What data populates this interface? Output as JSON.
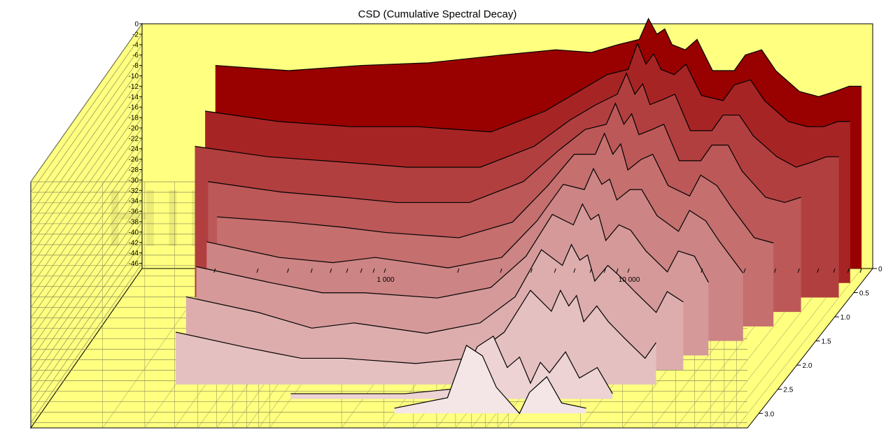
{
  "watermark": "HIFICompass.com",
  "colors": {
    "wall": "#ffff80",
    "gridline": "#8c8c5a",
    "front_slice": "#f2e2e2",
    "back_slice": "#990000"
  },
  "chart_data": {
    "type": "waterfall",
    "title": "CSD (Cumulative Spectral Decay)",
    "grid": true,
    "x_scale": "log",
    "x_ticks": [
      {
        "value": 1000,
        "label": "1 000"
      },
      {
        "value": 10000,
        "label": "10 000"
      }
    ],
    "y_range": [
      -47,
      0
    ],
    "y_ticks": [
      "0",
      "-2",
      "-4",
      "-6",
      "-8",
      "-10",
      "-12",
      "-14",
      "-16",
      "-18",
      "-20",
      "-22",
      "-24",
      "-26",
      "-28",
      "-30",
      "-32",
      "-34",
      "-36",
      "-38",
      "-40",
      "-42",
      "-44",
      "-46"
    ],
    "z_range": [
      0,
      3.3
    ],
    "z_ticks": [
      "0",
      "0.5",
      "1.0",
      "1.5",
      "2.0",
      "2.5",
      "3.0"
    ],
    "slices": [
      {
        "t": 0.0,
        "f_start": 200,
        "points": [
          [
            200,
            -8
          ],
          [
            400,
            -9
          ],
          [
            800,
            -8
          ],
          [
            1500,
            -7.5
          ],
          [
            3000,
            -6
          ],
          [
            5000,
            -5
          ],
          [
            7000,
            -5.5
          ],
          [
            9000,
            -4
          ],
          [
            11000,
            -3
          ],
          [
            12000,
            1
          ],
          [
            13000,
            -2
          ],
          [
            14000,
            -1
          ],
          [
            15000,
            -4
          ],
          [
            17000,
            -5
          ],
          [
            19000,
            -3
          ],
          [
            22000,
            -9
          ],
          [
            27000,
            -9
          ],
          [
            30000,
            -6
          ],
          [
            35000,
            -5
          ],
          [
            40000,
            -9
          ],
          [
            50000,
            -13
          ],
          [
            60000,
            -14
          ],
          [
            70000,
            -13
          ],
          [
            80000,
            -12
          ],
          [
            90000,
            -12
          ]
        ]
      },
      {
        "t": 0.3,
        "f_start": 200,
        "points": [
          [
            200,
            -14
          ],
          [
            400,
            -16
          ],
          [
            800,
            -17
          ],
          [
            1500,
            -17
          ],
          [
            3000,
            -18
          ],
          [
            5000,
            -14
          ],
          [
            7000,
            -10
          ],
          [
            9000,
            -7
          ],
          [
            11000,
            -6
          ],
          [
            12000,
            -1
          ],
          [
            13000,
            -5
          ],
          [
            14000,
            -3
          ],
          [
            15000,
            -6
          ],
          [
            17000,
            -7
          ],
          [
            19000,
            -5
          ],
          [
            22000,
            -11
          ],
          [
            27000,
            -12
          ],
          [
            30000,
            -9
          ],
          [
            35000,
            -8
          ],
          [
            40000,
            -12
          ],
          [
            50000,
            -16
          ],
          [
            60000,
            -17
          ],
          [
            70000,
            -17
          ],
          [
            80000,
            -16
          ],
          [
            90000,
            -16
          ]
        ]
      },
      {
        "t": 0.6,
        "f_start": 200,
        "points": [
          [
            200,
            -18
          ],
          [
            400,
            -20
          ],
          [
            800,
            -21
          ],
          [
            1500,
            -22
          ],
          [
            3000,
            -22
          ],
          [
            5000,
            -18
          ],
          [
            7000,
            -13
          ],
          [
            9000,
            -10
          ],
          [
            11000,
            -8
          ],
          [
            12000,
            -4
          ],
          [
            13000,
            -8
          ],
          [
            14000,
            -6
          ],
          [
            15000,
            -10
          ],
          [
            17000,
            -9
          ],
          [
            19000,
            -8
          ],
          [
            22000,
            -15
          ],
          [
            27000,
            -15
          ],
          [
            30000,
            -12
          ],
          [
            35000,
            -12
          ],
          [
            40000,
            -16
          ],
          [
            50000,
            -20
          ],
          [
            60000,
            -22
          ],
          [
            70000,
            -21
          ],
          [
            80000,
            -20
          ],
          [
            90000,
            -20
          ]
        ]
      },
      {
        "t": 0.9,
        "f_start": 250,
        "points": [
          [
            250,
            -22
          ],
          [
            500,
            -24
          ],
          [
            900,
            -25
          ],
          [
            1500,
            -26
          ],
          [
            3000,
            -26
          ],
          [
            5000,
            -22
          ],
          [
            7000,
            -16
          ],
          [
            9000,
            -12
          ],
          [
            11000,
            -11
          ],
          [
            12000,
            -7
          ],
          [
            13000,
            -11
          ],
          [
            14000,
            -9
          ],
          [
            15000,
            -13
          ],
          [
            17000,
            -12
          ],
          [
            19000,
            -11
          ],
          [
            22000,
            -18
          ],
          [
            27000,
            -18
          ],
          [
            30000,
            -15
          ],
          [
            35000,
            -15
          ],
          [
            40000,
            -20
          ],
          [
            50000,
            -25
          ],
          [
            60000,
            -26
          ],
          [
            70000,
            -25
          ]
        ]
      },
      {
        "t": 1.2,
        "f_start": 300,
        "points": [
          [
            300,
            -26
          ],
          [
            600,
            -27
          ],
          [
            1000,
            -28
          ],
          [
            1500,
            -29
          ],
          [
            3000,
            -30
          ],
          [
            5000,
            -27
          ],
          [
            7000,
            -20
          ],
          [
            9000,
            -14
          ],
          [
            11000,
            -14
          ],
          [
            12000,
            -10
          ],
          [
            13000,
            -14
          ],
          [
            14000,
            -12
          ],
          [
            15000,
            -17
          ],
          [
            17000,
            -15
          ],
          [
            19000,
            -14
          ],
          [
            22000,
            -20
          ],
          [
            27000,
            -22
          ],
          [
            30000,
            -18
          ],
          [
            35000,
            -20
          ],
          [
            40000,
            -24
          ],
          [
            50000,
            -30
          ],
          [
            60000,
            -31
          ]
        ]
      },
      {
        "t": 1.5,
        "f_start": 300,
        "points": [
          [
            300,
            -28
          ],
          [
            600,
            -31
          ],
          [
            1000,
            -32
          ],
          [
            1500,
            -31
          ],
          [
            3000,
            -33
          ],
          [
            5000,
            -31
          ],
          [
            7000,
            -24
          ],
          [
            9000,
            -17
          ],
          [
            11000,
            -18
          ],
          [
            12000,
            -14
          ],
          [
            13000,
            -17
          ],
          [
            14000,
            -16
          ],
          [
            15000,
            -20
          ],
          [
            17000,
            -18
          ],
          [
            19000,
            -18
          ],
          [
            22000,
            -23
          ],
          [
            27000,
            -26
          ],
          [
            30000,
            -22
          ],
          [
            35000,
            -24
          ],
          [
            40000,
            -28
          ],
          [
            50000,
            -34
          ]
        ]
      },
      {
        "t": 1.8,
        "f_start": 300,
        "points": [
          [
            300,
            -30
          ],
          [
            600,
            -33
          ],
          [
            1000,
            -35
          ],
          [
            1500,
            -35
          ],
          [
            3000,
            -36
          ],
          [
            5000,
            -34
          ],
          [
            7000,
            -28
          ],
          [
            9000,
            -20
          ],
          [
            11000,
            -22
          ],
          [
            12000,
            -18
          ],
          [
            13000,
            -21
          ],
          [
            14000,
            -20
          ],
          [
            15000,
            -25
          ],
          [
            17000,
            -22
          ],
          [
            19000,
            -23
          ],
          [
            22000,
            -27
          ],
          [
            27000,
            -31
          ],
          [
            30000,
            -27
          ],
          [
            35000,
            -28
          ],
          [
            40000,
            -33
          ]
        ]
      },
      {
        "t": 2.1,
        "f_start": 300,
        "points": [
          [
            300,
            -33
          ],
          [
            600,
            -36
          ],
          [
            1000,
            -39
          ],
          [
            1500,
            -38
          ],
          [
            3000,
            -40
          ],
          [
            5000,
            -38
          ],
          [
            7000,
            -33
          ],
          [
            9000,
            -24
          ],
          [
            11000,
            -27
          ],
          [
            12000,
            -23
          ],
          [
            13000,
            -26
          ],
          [
            14000,
            -25
          ],
          [
            15000,
            -30
          ],
          [
            17000,
            -27
          ],
          [
            19000,
            -29
          ],
          [
            22000,
            -32
          ],
          [
            27000,
            -36
          ],
          [
            30000,
            -32
          ],
          [
            35000,
            -34
          ]
        ]
      },
      {
        "t": 2.4,
        "f_start": 300,
        "points": [
          [
            300,
            -37
          ],
          [
            600,
            -40
          ],
          [
            1000,
            -42
          ],
          [
            1500,
            -42
          ],
          [
            3000,
            -43
          ],
          [
            5000,
            -42
          ],
          [
            7000,
            -37
          ],
          [
            9000,
            -29
          ],
          [
            11000,
            -33
          ],
          [
            12000,
            -29
          ],
          [
            13000,
            -32
          ],
          [
            14000,
            -30
          ],
          [
            15000,
            -35
          ],
          [
            17000,
            -32
          ],
          [
            19000,
            -35
          ],
          [
            22000,
            -38
          ],
          [
            27000,
            -42
          ],
          [
            30000,
            -39
          ]
        ]
      },
      {
        "t": 2.7,
        "f_start": 1000,
        "points": [
          [
            1000,
            -46
          ],
          [
            3000,
            -46
          ],
          [
            5000,
            -45
          ],
          [
            6000,
            -37
          ],
          [
            7000,
            -35
          ],
          [
            8000,
            -41
          ],
          [
            9000,
            -39
          ],
          [
            10000,
            -44
          ],
          [
            11000,
            -40
          ],
          [
            12000,
            -42
          ],
          [
            14000,
            -38
          ],
          [
            16000,
            -43
          ],
          [
            19000,
            -41
          ],
          [
            22000,
            -46
          ]
        ]
      },
      {
        "t": 3.0,
        "f_start": 3000,
        "points": [
          [
            3000,
            -46
          ],
          [
            5000,
            -44
          ],
          [
            6000,
            -34
          ],
          [
            7000,
            -36
          ],
          [
            8000,
            -42
          ],
          [
            10000,
            -47
          ],
          [
            11000,
            -43
          ],
          [
            13000,
            -40
          ],
          [
            15000,
            -45
          ],
          [
            19000,
            -46
          ]
        ]
      }
    ]
  }
}
